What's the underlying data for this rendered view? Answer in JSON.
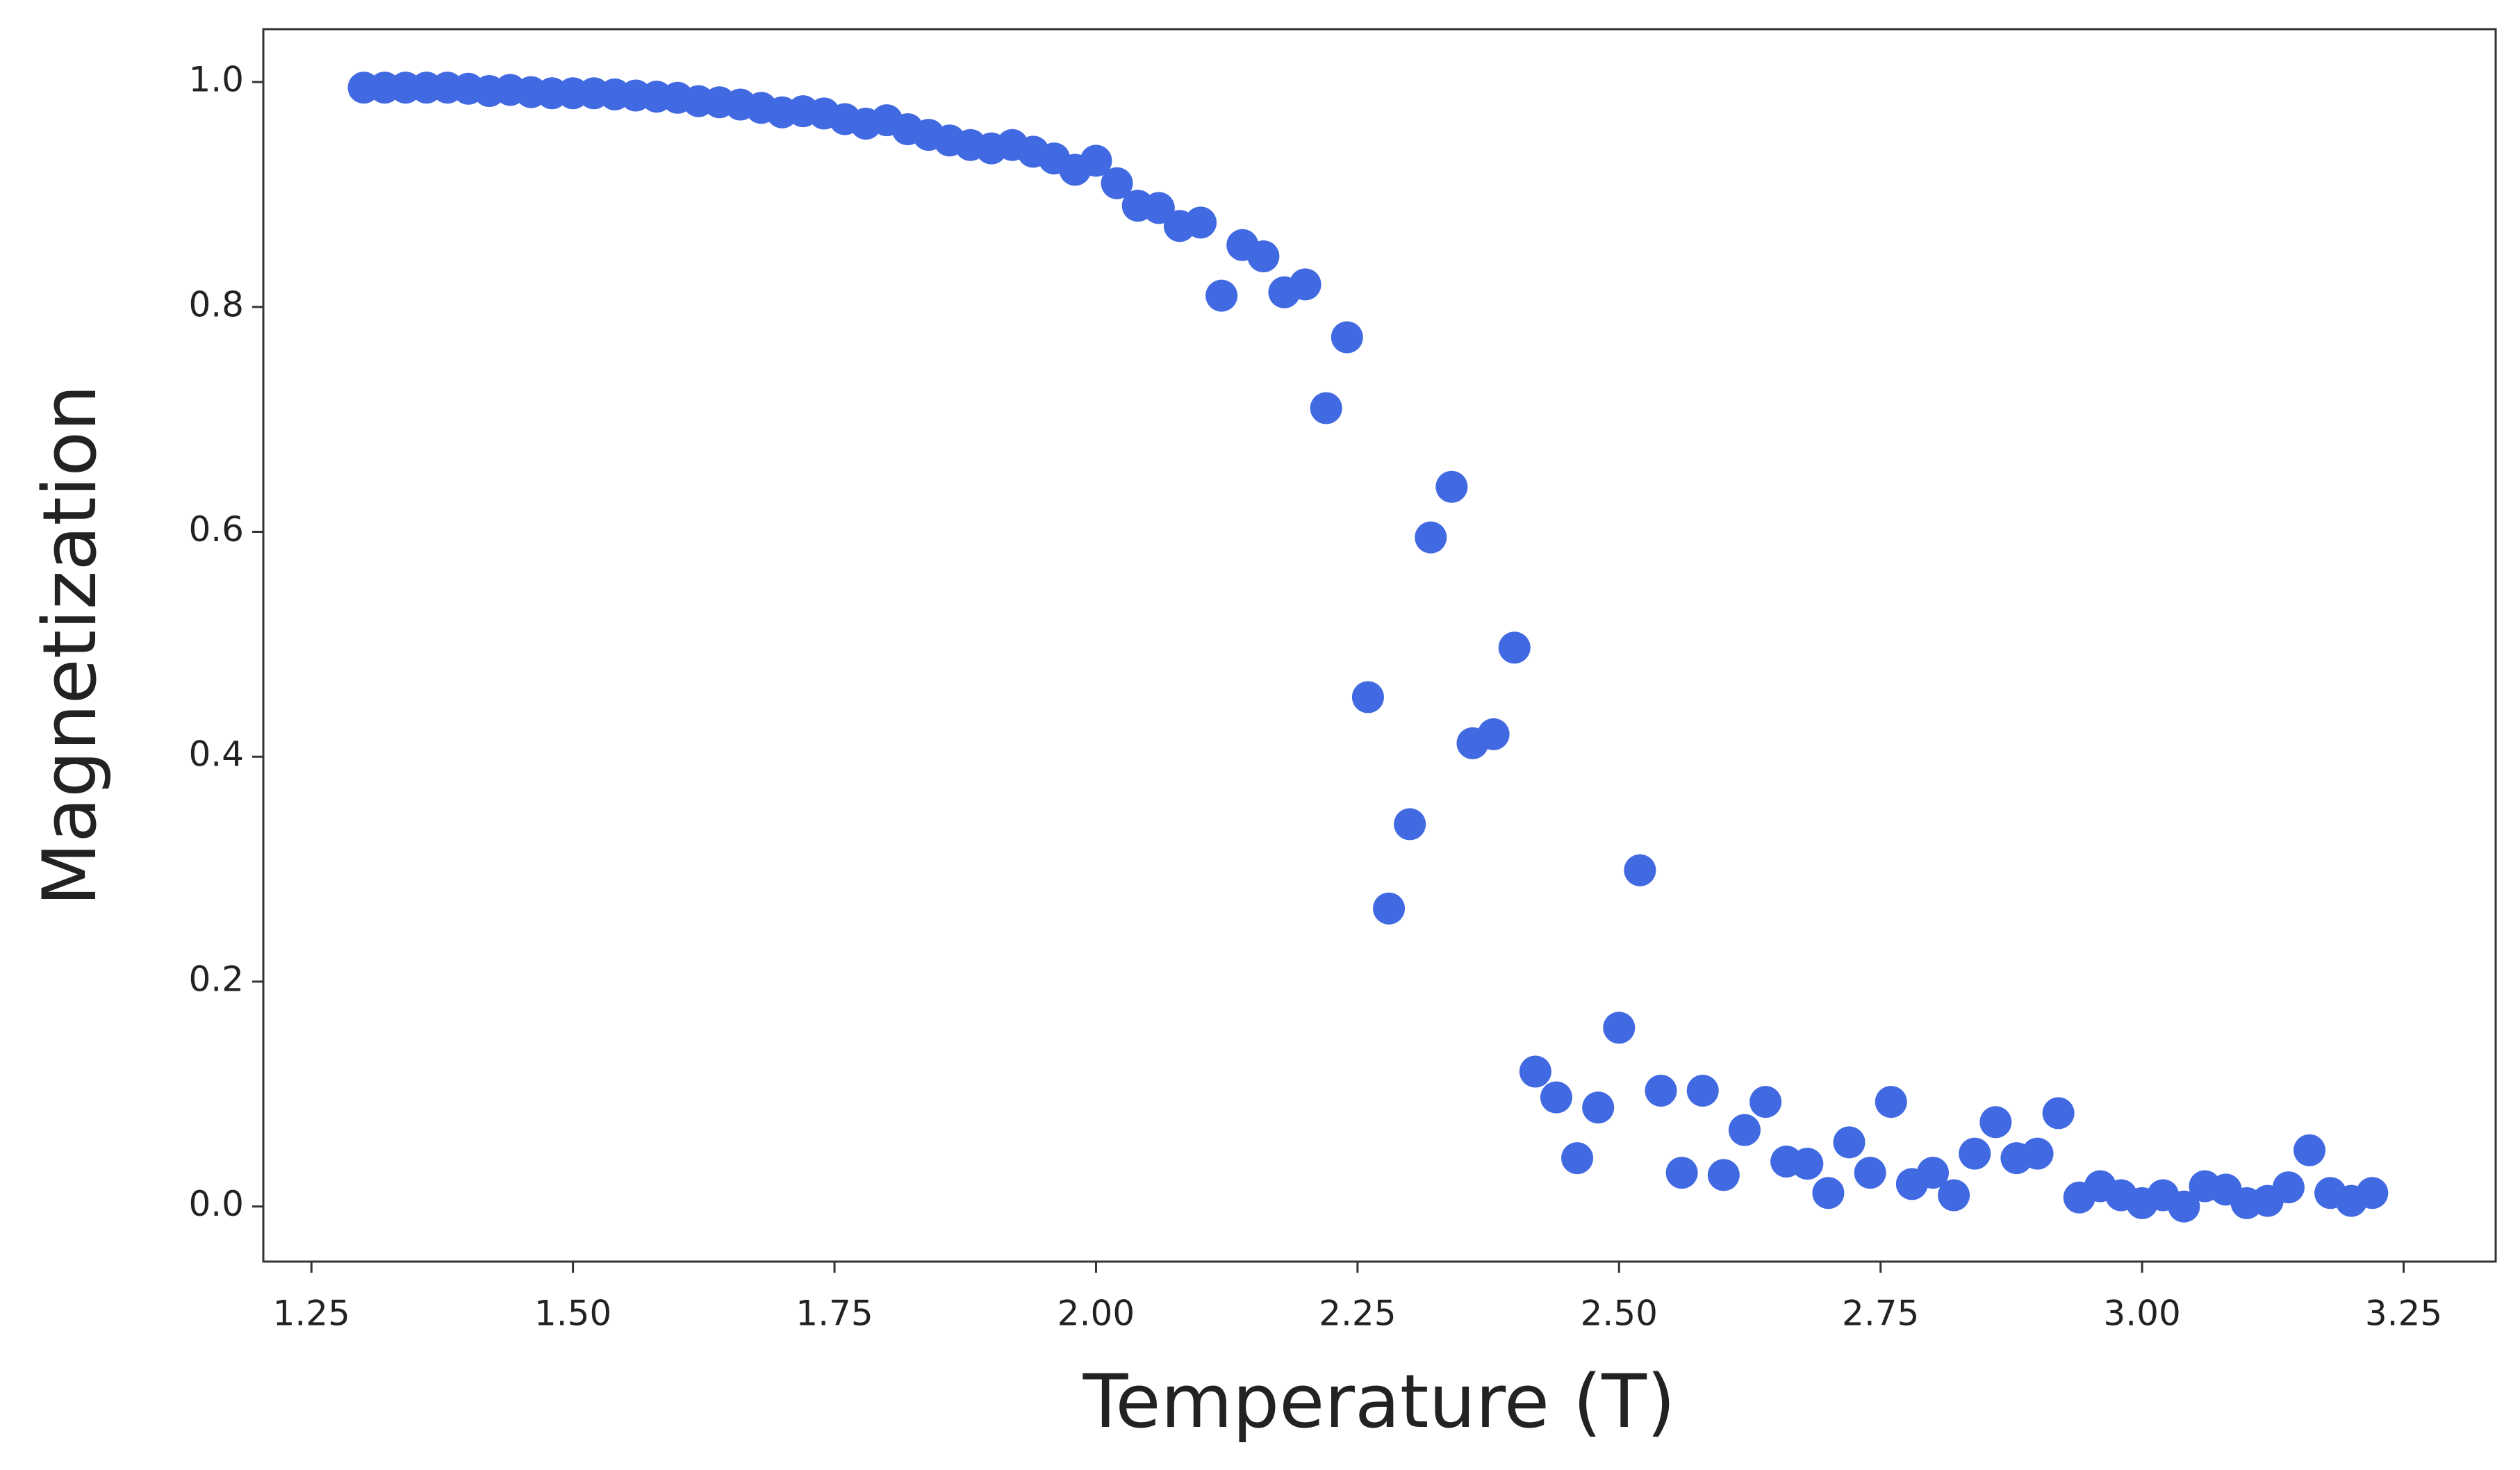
{
  "chart_data": {
    "type": "scatter",
    "x_label": "Temperature (T)",
    "y_label": "Magnetization",
    "color": "#4169e1",
    "x": [
      1.3,
      1.32,
      1.34,
      1.36,
      1.38,
      1.4,
      1.42,
      1.44,
      1.46,
      1.48,
      1.5,
      1.52,
      1.54,
      1.56,
      1.58,
      1.6,
      1.62,
      1.64,
      1.66,
      1.68,
      1.7,
      1.72,
      1.74,
      1.76,
      1.78,
      1.8,
      1.82,
      1.84,
      1.86,
      1.88,
      1.9,
      1.92,
      1.94,
      1.96,
      1.98,
      2.0,
      2.02,
      2.04,
      2.06,
      2.08,
      2.1,
      2.12,
      2.14,
      2.16,
      2.18,
      2.2,
      2.22,
      2.24,
      2.26,
      2.28,
      2.3,
      2.32,
      2.34,
      2.36,
      2.38,
      2.4,
      2.42,
      2.44,
      2.46,
      2.48,
      2.5,
      2.52,
      2.54,
      2.56,
      2.58,
      2.6,
      2.62,
      2.64,
      2.66,
      2.68,
      2.7,
      2.72,
      2.74,
      2.76,
      2.78,
      2.8,
      2.82,
      2.84,
      2.86,
      2.88,
      2.9,
      2.92,
      2.94,
      2.96,
      2.98,
      3.0,
      3.02,
      3.04,
      3.06,
      3.08,
      3.1,
      3.12,
      3.14,
      3.16,
      3.18,
      3.2,
      3.22
    ],
    "values": [
      0.995,
      0.995,
      0.995,
      0.995,
      0.995,
      0.994,
      0.992,
      0.993,
      0.991,
      0.99,
      0.99,
      0.99,
      0.989,
      0.988,
      0.987,
      0.986,
      0.983,
      0.982,
      0.98,
      0.977,
      0.973,
      0.974,
      0.972,
      0.967,
      0.963,
      0.966,
      0.958,
      0.953,
      0.948,
      0.944,
      0.941,
      0.944,
      0.938,
      0.932,
      0.922,
      0.93,
      0.91,
      0.89,
      0.888,
      0.872,
      0.875,
      0.81,
      0.855,
      0.845,
      0.813,
      0.82,
      0.71,
      0.773,
      0.453,
      0.265,
      0.34,
      0.595,
      0.64,
      0.412,
      0.42,
      0.497,
      0.12,
      0.097,
      0.043,
      0.088,
      0.159,
      0.299,
      0.103,
      0.03,
      0.103,
      0.028,
      0.068,
      0.093,
      0.04,
      0.038,
      0.012,
      0.057,
      0.03,
      0.093,
      0.02,
      0.03,
      0.01,
      0.047,
      0.075,
      0.043,
      0.047,
      0.083,
      0.008,
      0.018,
      0.01,
      0.003,
      0.01,
      0.0,
      0.018,
      0.015,
      0.003,
      0.005,
      0.017,
      0.05,
      0.012,
      0.005,
      0.012
    ],
    "xlim": [
      1.204,
      3.338
    ],
    "ylim": [
      -0.049,
      1.047
    ],
    "xticks": [
      1.25,
      {
        "value": 1.5,
        "label": "1.50"
      },
      1.75,
      {
        "value": 2.0,
        "label": "2.00"
      },
      2.25,
      {
        "value": 2.5,
        "label": "2.50"
      },
      2.75,
      {
        "value": 3.0,
        "label": "3.00"
      },
      3.25
    ],
    "yticks": [
      {
        "value": 0.0,
        "label": "0.0"
      },
      0.2,
      0.4,
      0.6,
      0.8,
      {
        "value": 1.0,
        "label": "1.0"
      }
    ],
    "grid": false
  }
}
